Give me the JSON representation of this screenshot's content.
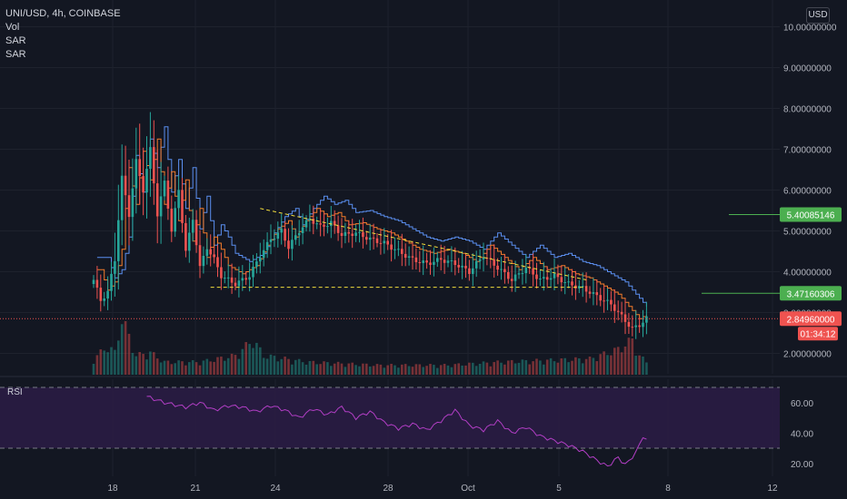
{
  "header": {
    "symbol_line": "UNI/USD, 4h, COINBASE",
    "indicators": [
      "Vol",
      "SAR",
      "SAR"
    ],
    "currency": "USD"
  },
  "price_axis": {
    "tick_labels": [
      "10.00000000",
      "9.00000000",
      "8.00000000",
      "7.00000000",
      "6.00000000",
      "5.00000000",
      "4.00000000",
      "3.00000000",
      "2.00000000"
    ]
  },
  "badges": {
    "resistance": "5.40085146",
    "support": "3.47160306",
    "last_price": "2.84960000",
    "countdown": "01:34:12"
  },
  "rsi_panel": {
    "label": "RSI",
    "tick_labels": [
      "60.00",
      "40.00",
      "20.00"
    ]
  },
  "time_axis": {
    "labels": [
      "18",
      "21",
      "24",
      "28",
      "Oct",
      "5",
      "8",
      "12"
    ]
  },
  "colors": {
    "background": "#131722",
    "up": "#26a69a",
    "down": "#ef5350",
    "sar_blue": "#5b8ff0",
    "sar_orange": "#f57c2b",
    "trendline": "#f2dd3c",
    "rsi": "#b23ec5",
    "rsi_band": "#2a1c44",
    "support_resistance": "#4caf50"
  },
  "chart_data": {
    "type": "candlestick",
    "title": "UNI/USD, 4h, COINBASE",
    "ylim": [
      1.5,
      10.2
    ],
    "y_scale": "linear",
    "x_tick_labels": [
      "18",
      "21",
      "24",
      "28",
      "Oct",
      "5",
      "8",
      "12"
    ],
    "grid": true,
    "last_price": 2.8496,
    "horizontal_levels": [
      5.40085146,
      3.47160306
    ],
    "price_path": [
      [
        0,
        3.8
      ],
      [
        2,
        3.3
      ],
      [
        4,
        3.5
      ],
      [
        6,
        4.3
      ],
      [
        8,
        6.3
      ],
      [
        10,
        5.4
      ],
      [
        12,
        6.7
      ],
      [
        14,
        6.0
      ],
      [
        16,
        7.0
      ],
      [
        18,
        5.4
      ],
      [
        20,
        6.2
      ],
      [
        22,
        5.0
      ],
      [
        24,
        6.0
      ],
      [
        26,
        4.5
      ],
      [
        28,
        5.3
      ],
      [
        30,
        4.1
      ],
      [
        32,
        4.6
      ],
      [
        34,
        4.3
      ],
      [
        36,
        3.9
      ],
      [
        38,
        3.8
      ],
      [
        40,
        3.7
      ],
      [
        44,
        3.9
      ],
      [
        47,
        4.4
      ],
      [
        50,
        4.8
      ],
      [
        53,
        5.0
      ],
      [
        55,
        4.6
      ],
      [
        58,
        5.0
      ],
      [
        61,
        5.3
      ],
      [
        64,
        5.1
      ],
      [
        67,
        5.2
      ],
      [
        70,
        4.9
      ],
      [
        74,
        4.95
      ],
      [
        78,
        4.8
      ],
      [
        82,
        4.7
      ],
      [
        86,
        4.5
      ],
      [
        90,
        4.3
      ],
      [
        94,
        4.2
      ],
      [
        98,
        4.3
      ],
      [
        102,
        4.2
      ],
      [
        106,
        4.0
      ],
      [
        110,
        4.4
      ],
      [
        114,
        4.1
      ],
      [
        118,
        3.8
      ],
      [
        122,
        4.1
      ],
      [
        126,
        3.8
      ],
      [
        130,
        3.9
      ],
      [
        134,
        3.7
      ],
      [
        138,
        3.6
      ],
      [
        142,
        3.4
      ],
      [
        146,
        3.2
      ],
      [
        150,
        2.8
      ],
      [
        152,
        2.6
      ],
      [
        154,
        2.7
      ],
      [
        156,
        2.85
      ]
    ],
    "volume_path": [
      [
        0,
        0.25
      ],
      [
        4,
        0.45
      ],
      [
        6,
        0.35
      ],
      [
        8,
        0.9
      ],
      [
        10,
        0.6
      ],
      [
        12,
        0.3
      ],
      [
        16,
        0.35
      ],
      [
        20,
        0.2
      ],
      [
        30,
        0.2
      ],
      [
        40,
        0.3
      ],
      [
        45,
        0.55
      ],
      [
        48,
        0.3
      ],
      [
        60,
        0.2
      ],
      [
        80,
        0.15
      ],
      [
        100,
        0.15
      ],
      [
        115,
        0.2
      ],
      [
        140,
        0.25
      ],
      [
        148,
        0.4
      ],
      [
        152,
        0.55
      ],
      [
        154,
        0.3
      ],
      [
        156,
        0.2
      ]
    ],
    "trendlines": [
      {
        "from": [
          47,
          5.55
        ],
        "to": [
          139,
          3.8
        ]
      },
      {
        "from": [
          33,
          3.62
        ],
        "to": [
          139,
          3.62
        ]
      }
    ],
    "series": [
      {
        "name": "Vol"
      },
      {
        "name": "SAR"
      },
      {
        "name": "SAR"
      },
      {
        "name": "RSI",
        "ylim": [
          14,
          72
        ],
        "levels": [
          70,
          30
        ],
        "path": [
          [
            15,
            64
          ],
          [
            20,
            60
          ],
          [
            26,
            57
          ],
          [
            30,
            60
          ],
          [
            34,
            55
          ],
          [
            38,
            58
          ],
          [
            42,
            57
          ],
          [
            46,
            54
          ],
          [
            50,
            58
          ],
          [
            54,
            55
          ],
          [
            58,
            50
          ],
          [
            62,
            56
          ],
          [
            66,
            52
          ],
          [
            70,
            57
          ],
          [
            74,
            50
          ],
          [
            78,
            54
          ],
          [
            82,
            47
          ],
          [
            86,
            43
          ],
          [
            90,
            46
          ],
          [
            94,
            42
          ],
          [
            98,
            48
          ],
          [
            102,
            55
          ],
          [
            106,
            45
          ],
          [
            110,
            42
          ],
          [
            114,
            48
          ],
          [
            118,
            40
          ],
          [
            122,
            44
          ],
          [
            126,
            38
          ],
          [
            130,
            35
          ],
          [
            134,
            32
          ],
          [
            138,
            28
          ],
          [
            142,
            22
          ],
          [
            145,
            18
          ],
          [
            148,
            24
          ],
          [
            150,
            19
          ],
          [
            153,
            27
          ],
          [
            155,
            38
          ],
          [
            156,
            35
          ]
        ]
      }
    ]
  }
}
